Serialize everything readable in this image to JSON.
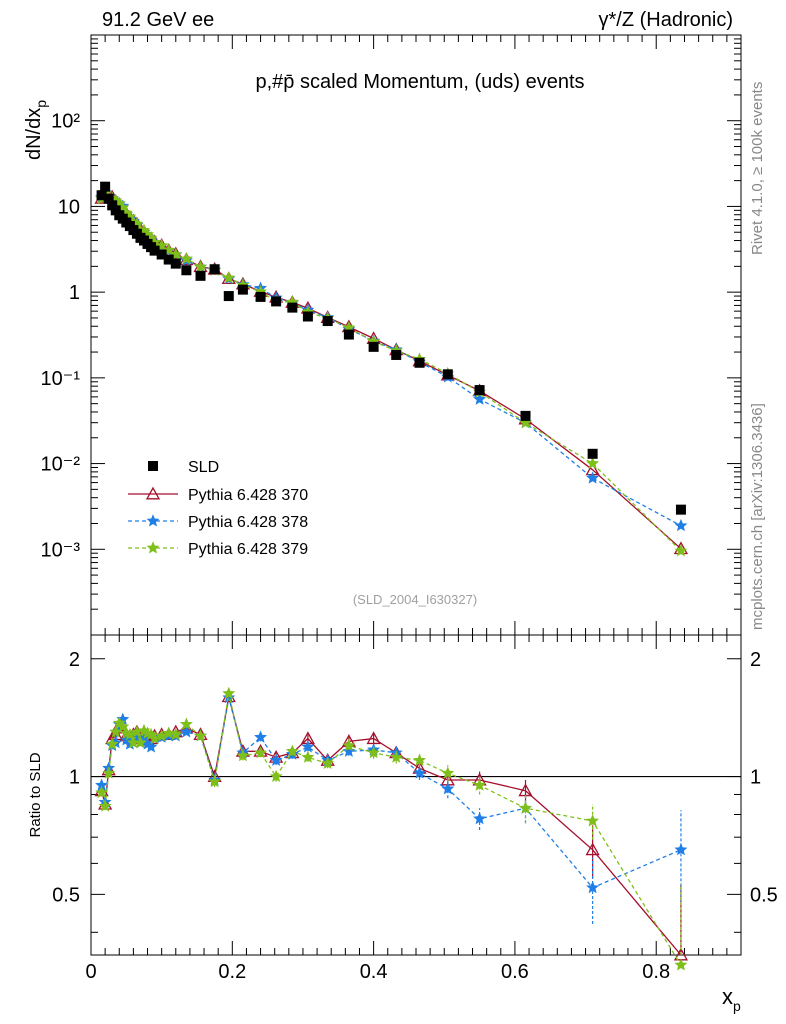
{
  "header": {
    "left": "91.2 GeV ee",
    "right": "γ*/Z (Hadronic)"
  },
  "side": {
    "rivet": "Rivet 4.1.0, ≥ 100k events",
    "mcplots": "mcplots.cern.ch [arXiv:1306.3436]"
  },
  "chart_data": {
    "type": "scatter",
    "title": "p,#p̄ scaled Momentum, (uds) events",
    "analysis_id": "(SLD_2004_I630327)",
    "xlabel": "x",
    "xlabel_sub": "p",
    "ylabel": "dN/dx",
    "ylabel_sub": "p",
    "ratio_ylabel": "Ratio to SLD",
    "xlim": [
      0,
      0.92
    ],
    "ylim_log": [
      0.0001,
      1000
    ],
    "ratio_ylim": [
      0.35,
      2.3
    ],
    "x_ticks": [
      "0",
      "0.2",
      "0.4",
      "0.6",
      "0.8"
    ],
    "y_ticks": [
      "10⁻³",
      "10⁻²",
      "10⁻¹",
      "1",
      "10",
      "10²"
    ],
    "ratio_ticks": [
      "0.5",
      "1",
      "2"
    ],
    "legend": [
      "SLD",
      "Pythia 6.428 370",
      "Pythia 6.428 378",
      "Pythia 6.428 379"
    ],
    "colors": {
      "data": "#000000",
      "p370": "#a50f2d",
      "p378": "#1f7fe6",
      "p379": "#7fbf1a"
    },
    "x": [
      0.015,
      0.02,
      0.025,
      0.03,
      0.035,
      0.04,
      0.045,
      0.05,
      0.055,
      0.06,
      0.065,
      0.07,
      0.075,
      0.08,
      0.085,
      0.09,
      0.1,
      0.11,
      0.12,
      0.135,
      0.155,
      0.175,
      0.195,
      0.215,
      0.24,
      0.262,
      0.285,
      0.307,
      0.335,
      0.365,
      0.4,
      0.432,
      0.465,
      0.505,
      0.55,
      0.615,
      0.71,
      0.835
    ],
    "data": [
      13.5,
      17.0,
      12.3,
      10.3,
      9.0,
      7.9,
      7.2,
      6.5,
      5.9,
      5.3,
      4.8,
      4.3,
      4.0,
      3.65,
      3.35,
      3.05,
      2.75,
      2.4,
      2.15,
      1.8,
      1.55,
      1.85,
      0.9,
      1.07,
      0.88,
      0.78,
      0.66,
      0.52,
      0.46,
      0.32,
      0.23,
      0.185,
      0.15,
      0.11,
      0.072,
      0.036,
      0.013,
      0.0029
    ],
    "series": [
      {
        "name": "Pythia 6.428 370",
        "ratio": [
          0.92,
          0.85,
          1.04,
          1.25,
          1.28,
          1.35,
          1.33,
          1.27,
          1.26,
          1.28,
          1.3,
          1.25,
          1.27,
          1.24,
          1.25,
          1.27,
          1.28,
          1.28,
          1.3,
          1.33,
          1.28,
          1.0,
          1.6,
          1.16,
          1.16,
          1.12,
          1.15,
          1.25,
          1.1,
          1.23,
          1.25,
          1.15,
          1.05,
          0.98,
          0.98,
          0.92,
          0.65,
          0.35
        ],
        "errors": [
          0.02,
          0.02,
          0.02,
          0.02,
          0.02,
          0.02,
          0.02,
          0.02,
          0.02,
          0.02,
          0.02,
          0.02,
          0.02,
          0.02,
          0.02,
          0.02,
          0.02,
          0.02,
          0.02,
          0.02,
          0.03,
          0.03,
          0.03,
          0.03,
          0.03,
          0.03,
          0.03,
          0.03,
          0.03,
          0.03,
          0.04,
          0.04,
          0.04,
          0.05,
          0.05,
          0.06,
          0.1,
          0.18
        ]
      },
      {
        "name": "Pythia 6.428 378",
        "ratio": [
          0.95,
          0.86,
          1.05,
          1.2,
          1.22,
          1.36,
          1.4,
          1.24,
          1.21,
          1.27,
          1.26,
          1.22,
          1.25,
          1.21,
          1.19,
          1.25,
          1.26,
          1.27,
          1.27,
          1.3,
          1.27,
          0.98,
          1.59,
          1.15,
          1.26,
          1.1,
          1.14,
          1.19,
          1.1,
          1.16,
          1.17,
          1.15,
          1.02,
          0.93,
          0.78,
          0.83,
          0.52,
          0.65
        ],
        "errors": [
          0.02,
          0.02,
          0.02,
          0.02,
          0.02,
          0.02,
          0.02,
          0.02,
          0.02,
          0.02,
          0.02,
          0.02,
          0.02,
          0.02,
          0.02,
          0.02,
          0.02,
          0.02,
          0.02,
          0.02,
          0.03,
          0.03,
          0.03,
          0.03,
          0.03,
          0.03,
          0.03,
          0.03,
          0.03,
          0.03,
          0.04,
          0.04,
          0.04,
          0.05,
          0.05,
          0.07,
          0.1,
          0.17
        ]
      },
      {
        "name": "Pythia 6.428 379",
        "ratio": [
          0.91,
          0.84,
          1.02,
          1.21,
          1.3,
          1.37,
          1.34,
          1.29,
          1.28,
          1.22,
          1.3,
          1.22,
          1.31,
          1.29,
          1.28,
          1.25,
          1.27,
          1.29,
          1.28,
          1.36,
          1.27,
          0.97,
          1.63,
          1.13,
          1.15,
          1.0,
          1.16,
          1.12,
          1.08,
          1.2,
          1.15,
          1.12,
          1.1,
          1.02,
          0.95,
          0.83,
          0.77,
          0.33
        ],
        "errors": [
          0.02,
          0.02,
          0.02,
          0.02,
          0.02,
          0.02,
          0.02,
          0.02,
          0.02,
          0.02,
          0.02,
          0.02,
          0.02,
          0.02,
          0.02,
          0.02,
          0.02,
          0.02,
          0.02,
          0.02,
          0.03,
          0.03,
          0.03,
          0.03,
          0.03,
          0.03,
          0.03,
          0.03,
          0.03,
          0.03,
          0.04,
          0.04,
          0.04,
          0.05,
          0.05,
          0.07,
          0.08,
          0.2
        ]
      }
    ]
  }
}
